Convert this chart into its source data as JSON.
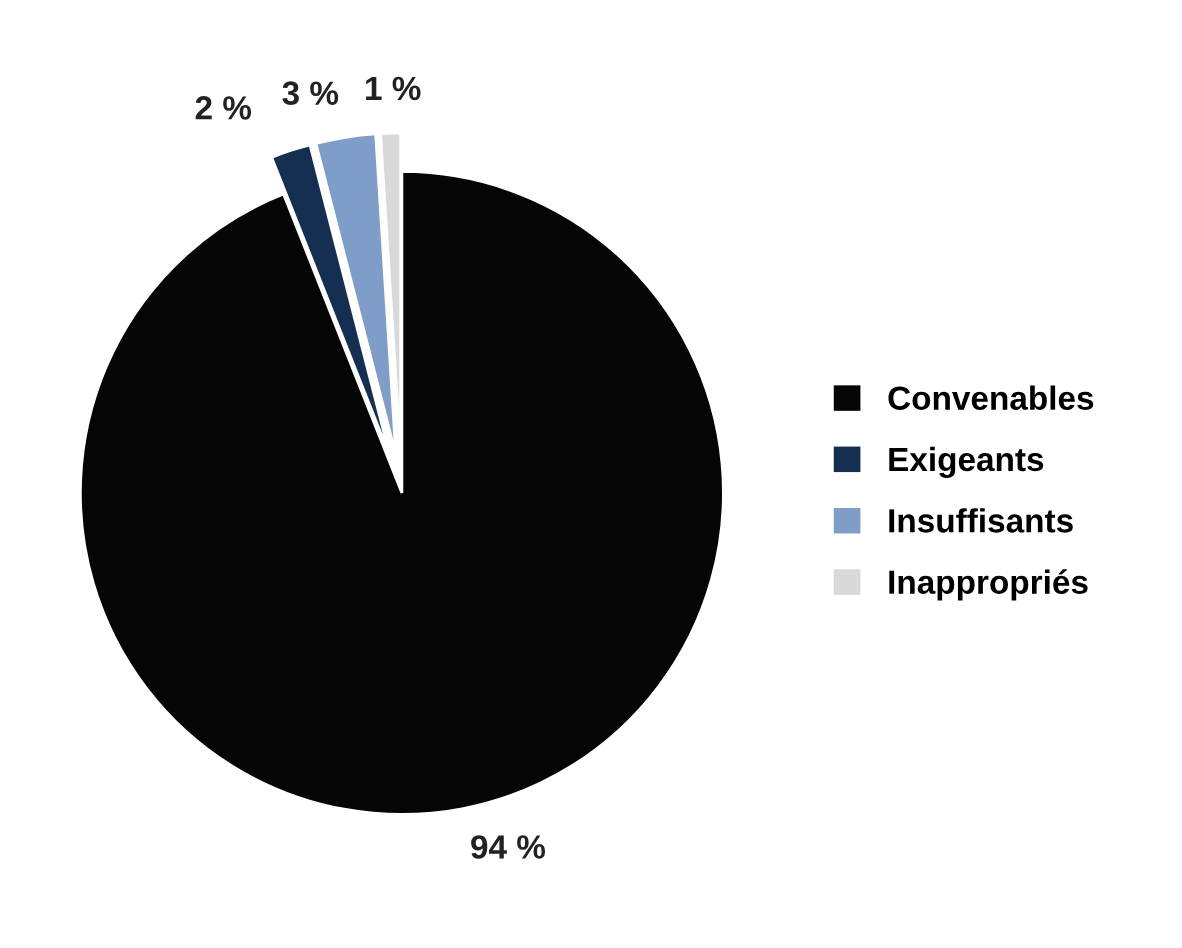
{
  "chart_data": {
    "type": "pie",
    "categories": [
      "Convenables",
      "Exigeants",
      "Insuffisants",
      "Inappropriés"
    ],
    "values": [
      94,
      2,
      3,
      1
    ],
    "value_labels": [
      "94 %",
      "2 %",
      "3 %",
      "1 %"
    ],
    "colors": [
      "#050505",
      "#142f52",
      "#7f9dc9",
      "#d9d9d9"
    ],
    "legend": "right"
  }
}
